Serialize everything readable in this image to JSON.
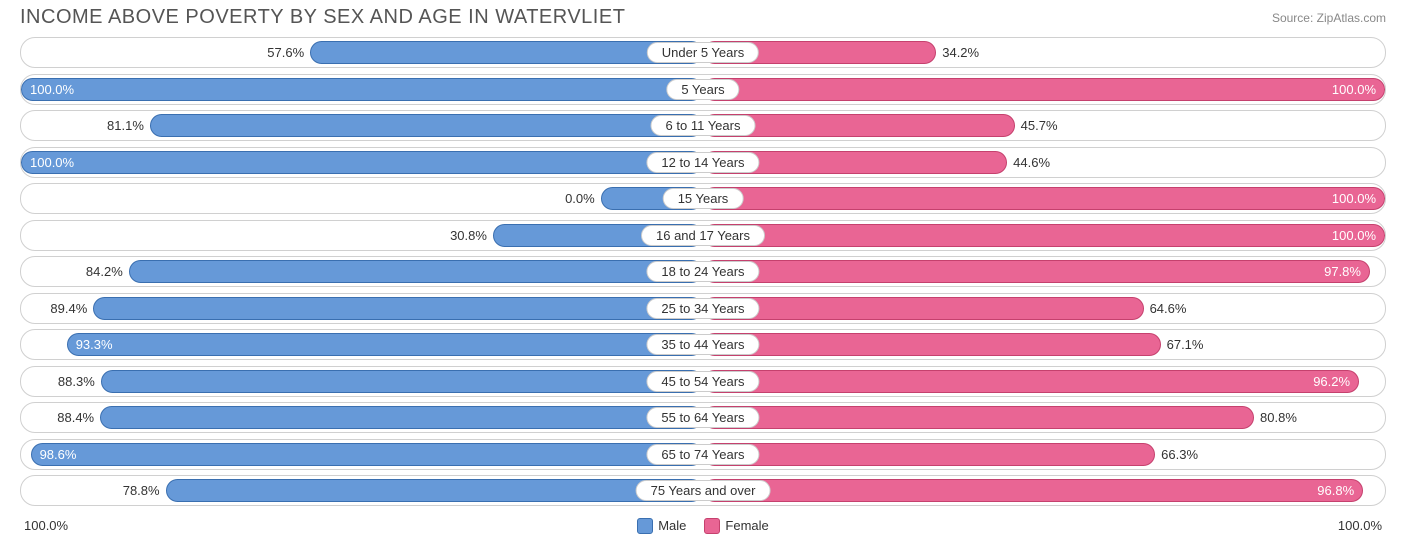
{
  "title": "INCOME ABOVE POVERTY BY SEX AND AGE IN WATERVLIET",
  "source": "Source: ZipAtlas.com",
  "colors": {
    "male_fill": "#6699d8",
    "male_border": "#3a6fb0",
    "female_fill": "#e96594",
    "female_border": "#c5416e",
    "track_border": "#d0d0d0",
    "text": "#333333",
    "title_text": "#555555"
  },
  "axis": {
    "left_label": "100.0%",
    "right_label": "100.0%",
    "max": 100.0
  },
  "legend": {
    "male": "Male",
    "female": "Female"
  },
  "rows": [
    {
      "age": "Under 5 Years",
      "male": 57.6,
      "female": 34.2
    },
    {
      "age": "5 Years",
      "male": 100.0,
      "female": 100.0
    },
    {
      "age": "6 to 11 Years",
      "male": 81.1,
      "female": 45.7
    },
    {
      "age": "12 to 14 Years",
      "male": 100.0,
      "female": 44.6
    },
    {
      "age": "15 Years",
      "male": 0.0,
      "female": 100.0
    },
    {
      "age": "16 and 17 Years",
      "male": 30.8,
      "female": 100.0
    },
    {
      "age": "18 to 24 Years",
      "male": 84.2,
      "female": 97.8
    },
    {
      "age": "25 to 34 Years",
      "male": 89.4,
      "female": 64.6
    },
    {
      "age": "35 to 44 Years",
      "male": 93.3,
      "female": 67.1
    },
    {
      "age": "45 to 54 Years",
      "male": 88.3,
      "female": 96.2
    },
    {
      "age": "55 to 64 Years",
      "male": 88.4,
      "female": 80.8
    },
    {
      "age": "65 to 74 Years",
      "male": 98.6,
      "female": 66.3
    },
    {
      "age": "75 Years and over",
      "male": 78.8,
      "female": 96.8
    }
  ]
}
